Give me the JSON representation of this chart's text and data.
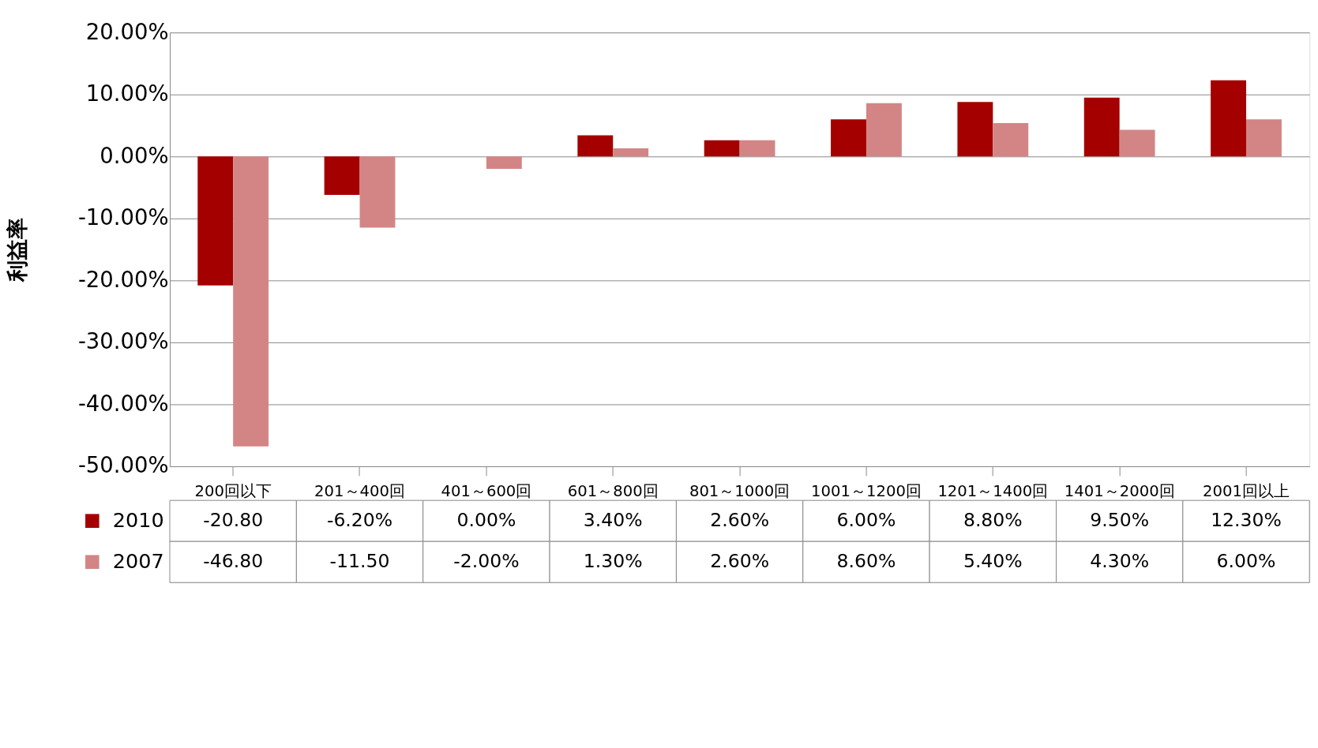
{
  "chart_data": {
    "type": "bar",
    "ylabel": "利益率",
    "categories": [
      "200回以下",
      "201～400回",
      "401～600回",
      "601～800回",
      "801～1000回",
      "1001～1200回",
      "1201～1400回",
      "1401～2000回",
      "2001回以上"
    ],
    "series": [
      {
        "name": "2010",
        "color": "#a50000",
        "values": [
          -20.8,
          -6.2,
          0.0,
          3.4,
          2.6,
          6.0,
          8.8,
          9.5,
          12.3
        ],
        "value_labels": [
          "-20.80",
          "-6.20%",
          "0.00%",
          "3.40%",
          "2.60%",
          "6.00%",
          "8.80%",
          "9.50%",
          "12.30%"
        ]
      },
      {
        "name": "2007",
        "color": "#d38585",
        "values": [
          -46.8,
          -11.5,
          -2.0,
          1.3,
          2.6,
          8.6,
          5.4,
          4.3,
          6.0
        ],
        "value_labels": [
          "-46.80",
          "-11.50",
          "-2.00%",
          "1.30%",
          "2.60%",
          "8.60%",
          "5.40%",
          "4.30%",
          "6.00%"
        ]
      }
    ],
    "ylim": [
      -50,
      20
    ],
    "yticks": [
      {
        "value": 20,
        "label": "20.00%"
      },
      {
        "value": 10,
        "label": "10.00%"
      },
      {
        "value": 0,
        "label": "0.00%"
      },
      {
        "value": -10,
        "label": "-10.00%"
      },
      {
        "value": -20,
        "label": "-20.00%"
      },
      {
        "value": -30,
        "label": "-30.00%"
      },
      {
        "value": -40,
        "label": "-40.00%"
      },
      {
        "value": -50,
        "label": "-50.00%"
      }
    ],
    "grid": "y",
    "legend": "bottom"
  }
}
